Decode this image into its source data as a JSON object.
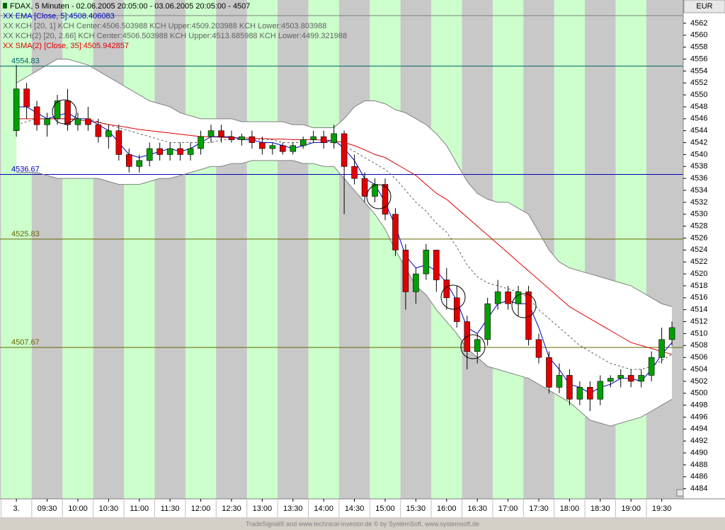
{
  "chart_data": {
    "type": "candlestick",
    "title": "FDAX, 5 Minuten - 02.06.2005 20:05:00 - 03.06.2005 20:05:00 - 4507",
    "currency": "EUR",
    "footer": "TradeSignal® and www.technical-investor.de © by SystemSoft, www.systemsoft.de",
    "legend": [
      {
        "label": "XX EMA [Close, 5]:4508.406083",
        "color": "#0000c0"
      },
      {
        "label": "XX KCH [20, 1] KCH Center:4506.503988 KCH Upper:4509.203988 KCH Lower:4503.803988",
        "color": "#606060"
      },
      {
        "label": "XX KCH(2) [20, 2.66] KCH Center:4506.503988 KCH Upper:4513.685988 KCH Lower:4499.321988",
        "color": "#606060"
      },
      {
        "label": "XX SMA(2) [Close, 35]:4505.942857",
        "color": "#e00000"
      }
    ],
    "xlim": [
      524,
      1191
    ],
    "xticks": [
      {
        "value": 540,
        "label": "3."
      },
      {
        "value": 570,
        "label": "09:30"
      },
      {
        "value": 600,
        "label": "10:00"
      },
      {
        "value": 630,
        "label": "10:30"
      },
      {
        "value": 660,
        "label": "11:00"
      },
      {
        "value": 690,
        "label": "11:30"
      },
      {
        "value": 720,
        "label": "12:00"
      },
      {
        "value": 750,
        "label": "12:30"
      },
      {
        "value": 780,
        "label": "13:00"
      },
      {
        "value": 810,
        "label": "13:30"
      },
      {
        "value": 840,
        "label": "14:00"
      },
      {
        "value": 870,
        "label": "14:30"
      },
      {
        "value": 900,
        "label": "15:00"
      },
      {
        "value": 930,
        "label": "15:30"
      },
      {
        "value": 960,
        "label": "16:00"
      },
      {
        "value": 990,
        "label": "16:30"
      },
      {
        "value": 1020,
        "label": "17:00"
      },
      {
        "value": 1050,
        "label": "17:30"
      },
      {
        "value": 1080,
        "label": "18:00"
      },
      {
        "value": 1110,
        "label": "18:30"
      },
      {
        "value": 1140,
        "label": "19:00"
      },
      {
        "value": 1170,
        "label": "19:30"
      }
    ],
    "ylim": [
      4482.3,
      4565.9
    ],
    "yticks": [
      4484,
      4486,
      4488,
      4490,
      4492,
      4494,
      4496,
      4498,
      4500,
      4502,
      4504,
      4506,
      4508,
      4510,
      4512,
      4514,
      4516,
      4518,
      4520,
      4522,
      4524,
      4526,
      4528,
      4530,
      4532,
      4534,
      4536,
      4538,
      4540,
      4542,
      4544,
      4546,
      4548,
      4550,
      4552,
      4554,
      4556,
      4558,
      4560,
      4562
    ],
    "background_colors": [
      "#c8c8c8",
      "#ccffcc"
    ],
    "levels": [
      {
        "value": 4554.83,
        "color": "#006666"
      },
      {
        "value": 4536.67,
        "color": "#0000c0"
      },
      {
        "value": 4525.83,
        "color": "#666600"
      },
      {
        "value": 4507.67,
        "color": "#666600"
      }
    ],
    "up_color": "#00a000",
    "down_color": "#e00000",
    "x": [
      540,
      550,
      560,
      570,
      580,
      590,
      600,
      610,
      620,
      630,
      640,
      650,
      660,
      670,
      680,
      690,
      700,
      710,
      720,
      730,
      740,
      750,
      760,
      770,
      780,
      790,
      800,
      810,
      820,
      830,
      840,
      850,
      860,
      870,
      880,
      890,
      900,
      910,
      920,
      930,
      940,
      950,
      960,
      970,
      980,
      990,
      1000,
      1010,
      1020,
      1030,
      1040,
      1050,
      1060,
      1070,
      1080,
      1090,
      1100,
      1110,
      1120,
      1130,
      1140,
      1150,
      1160,
      1170,
      1180
    ],
    "open": [
      4544,
      4551,
      4548,
      4545,
      4546,
      4549,
      4545,
      4546,
      4545,
      4543,
      4544,
      4540,
      4538,
      4539,
      4541,
      4540,
      4541,
      4540,
      4541,
      4543,
      4544,
      4543,
      4542.5,
      4543,
      4542,
      4541,
      4541.5,
      4540.5,
      4541.5,
      4542.5,
      4543,
      4542,
      4543.5,
      4538,
      4536,
      4533,
      4535,
      4530,
      4524,
      4517,
      4520,
      4524,
      4519,
      4516,
      4512,
      4507,
      4509,
      4515,
      4517,
      4515,
      4517,
      4509,
      4506,
      4501,
      4503,
      4499,
      4501,
      4499,
      4502,
      4502.5,
      4503,
      4502,
      4503,
      4506,
      4509
    ],
    "high": [
      4555,
      4552,
      4549,
      4547,
      4550,
      4551,
      4547,
      4548,
      4546,
      4545,
      4545,
      4541,
      4540,
      4542,
      4542,
      4542,
      4542,
      4542,
      4544,
      4545,
      4545,
      4544,
      4543.5,
      4544,
      4543,
      4542,
      4542,
      4542,
      4543,
      4544,
      4544,
      4545,
      4544,
      4540,
      4537,
      4536,
      4536,
      4531,
      4525,
      4521,
      4525,
      4524,
      4521,
      4518,
      4513,
      4510,
      4516,
      4519,
      4518,
      4518,
      4518,
      4510,
      4507,
      4505,
      4504,
      4502,
      4502,
      4503,
      4503,
      4504,
      4504,
      4504,
      4507,
      4511,
      4512
    ],
    "low": [
      4543,
      4546,
      4544,
      4543,
      4545,
      4544,
      4544,
      4544,
      4542,
      4541,
      4539,
      4537,
      4537,
      4538,
      4539,
      4539,
      4539,
      4539,
      4540,
      4542,
      4542,
      4542,
      4541.5,
      4541,
      4540,
      4540,
      4540,
      4540,
      4541,
      4542,
      4541,
      4541,
      4530,
      4535,
      4532,
      4532,
      4529,
      4523,
      4514,
      4515,
      4519,
      4517,
      4514,
      4511,
      4504,
      4505,
      4508,
      4514,
      4514,
      4513,
      4508,
      4505,
      4500,
      4500,
      4498,
      4498,
      4497,
      4498,
      4501,
      4501,
      4501,
      4501,
      4502,
      4505,
      4508
    ],
    "close": [
      4551,
      4548,
      4545,
      4546,
      4549,
      4545,
      4546,
      4545,
      4543,
      4544,
      4540,
      4538,
      4539,
      4541,
      4540,
      4541,
      4540,
      4541,
      4543,
      4544,
      4543,
      4542.5,
      4543,
      4542,
      4541,
      4541.5,
      4540.5,
      4541.5,
      4542.5,
      4543,
      4542,
      4543.5,
      4538,
      4536,
      4533,
      4535,
      4530,
      4524,
      4517,
      4520,
      4524,
      4519,
      4516,
      4512,
      4507,
      4509,
      4515,
      4517,
      4515,
      4517,
      4509,
      4506,
      4501,
      4503,
      4499,
      4501,
      4499,
      4502,
      4502.5,
      4503,
      4502,
      4503,
      4506,
      4509,
      4511
    ],
    "series": [
      {
        "color": "#808080",
        "band": "upper",
        "values": [
          4552,
          4553,
          4554,
          4555,
          4556,
          4556,
          4555.5,
          4555,
          4554,
          4553,
          4552,
          4551,
          4550,
          4549,
          4548.5,
          4548,
          4547,
          4546.5,
          4546,
          4546,
          4546,
          4546,
          4545.5,
          4545.5,
          4545.5,
          4545.5,
          4545.5,
          4545,
          4545,
          4544.5,
          4544.5,
          4544.5,
          4546,
          4548,
          4549,
          4549,
          4548.5,
          4547.5,
          4547,
          4546,
          4545,
          4543.5,
          4541.5,
          4538.5,
          4535.5,
          4533.5,
          4532.5,
          4532,
          4532,
          4531,
          4530,
          4527,
          4524,
          4522,
          4521,
          4520.5,
          4520,
          4519.5,
          4519,
          4518.5,
          4518,
          4517,
          4516,
          4515,
          4514.5
        ]
      },
      {
        "color": "#808080",
        "band": "lower",
        "values": [
          4537,
          4537,
          4537,
          4536.5,
          4536,
          4536,
          4536,
          4536,
          4536,
          4535.5,
          4535,
          4535,
          4535,
          4535.5,
          4536,
          4536,
          4536.5,
          4537,
          4537.5,
          4538,
          4538,
          4538.5,
          4538.5,
          4539,
          4539,
          4539,
          4539,
          4539,
          4538.5,
          4538.5,
          4538,
          4538,
          4536,
          4534,
          4532,
          4530,
          4527.5,
          4524,
          4521,
          4518,
          4516.5,
          4514,
          4512,
          4510,
          4507.5,
          4506,
          4504.5,
          4504,
          4503.5,
          4503,
          4502.5,
          4501.5,
          4500.5,
          4499.5,
          4498.5,
          4497,
          4495.5,
          4495,
          4494.5,
          4495,
          4495.5,
          4496,
          4497,
          4498,
          4499
        ]
      },
      {
        "color": "#606060",
        "dash": true,
        "values": [
          4545,
          4545.5,
          4546,
          4546,
          4546,
          4546,
          4546,
          4546,
          4545.5,
          4545,
          4544.5,
          4544,
          4543.5,
          4543,
          4542.5,
          4542,
          4542,
          4542,
          4542,
          4542,
          4542.5,
          4542.5,
          4542.5,
          4542.5,
          4542.5,
          4542.5,
          4542,
          4542,
          4542,
          4542,
          4542,
          4542,
          4541.5,
          4540.5,
          4539.5,
          4538.5,
          4537.5,
          4536,
          4534,
          4532,
          4530.5,
          4528.5,
          4527,
          4524.5,
          4521.5,
          4519.5,
          4518.5,
          4518,
          4517.5,
          4517,
          4516,
          4514,
          4512.5,
          4511,
          4509.5,
          4508,
          4507,
          4506,
          4505,
          4504.5,
          4504,
          4504,
          4504.5,
          4505.5,
          4506.5
        ]
      },
      {
        "color": "#e00000",
        "values": [
          4546,
          4546,
          4546,
          4546,
          4546,
          4546,
          4545.8,
          4545.6,
          4545.4,
          4545,
          4544.8,
          4544.5,
          4544.2,
          4544,
          4543.8,
          4543.6,
          4543.4,
          4543.2,
          4543,
          4543,
          4542.9,
          4542.8,
          4542.8,
          4542.7,
          4542.7,
          4542.6,
          4542.6,
          4542.5,
          4542.5,
          4542.5,
          4542.4,
          4542.3,
          4542,
          4541.5,
          4540.8,
          4540,
          4539.5,
          4538.5,
          4537.5,
          4536.5,
          4535,
          4533.5,
          4532.5,
          4531,
          4529.5,
          4528,
          4526.5,
          4525,
          4523.5,
          4522,
          4520.5,
          4519,
          4517.5,
          4516,
          4514.5,
          4513.5,
          4512.5,
          4511.5,
          4510.5,
          4509.5,
          4508.5,
          4508,
          4507.5,
          4507,
          4506.5
        ]
      },
      {
        "color": "#0000c0",
        "values": [
          4548,
          4548,
          4547,
          4546,
          4546.5,
          4547,
          4546,
          4546,
          4545,
          4544,
          4542,
          4540,
          4539.5,
          4540,
          4540.5,
          4541,
          4540.5,
          4541,
          4542,
          4543,
          4543,
          4543,
          4542.5,
          4542.5,
          4542,
          4542,
          4541.5,
          4541,
          4541.5,
          4542,
          4542,
          4542.5,
          4541,
          4539,
          4536,
          4535,
          4532,
          4528,
          4523,
          4521,
          4521.5,
          4520.5,
          4518.5,
          4515.5,
          4511,
          4510,
          4512.5,
          4515,
          4515.5,
          4515,
          4515,
          4511,
          4506,
          4504,
          4501.5,
          4501,
          4500,
          4501,
          4501.5,
          4502.5,
          4502.5,
          4502,
          4504,
          4506.5,
          4508.5
        ]
      }
    ]
  }
}
